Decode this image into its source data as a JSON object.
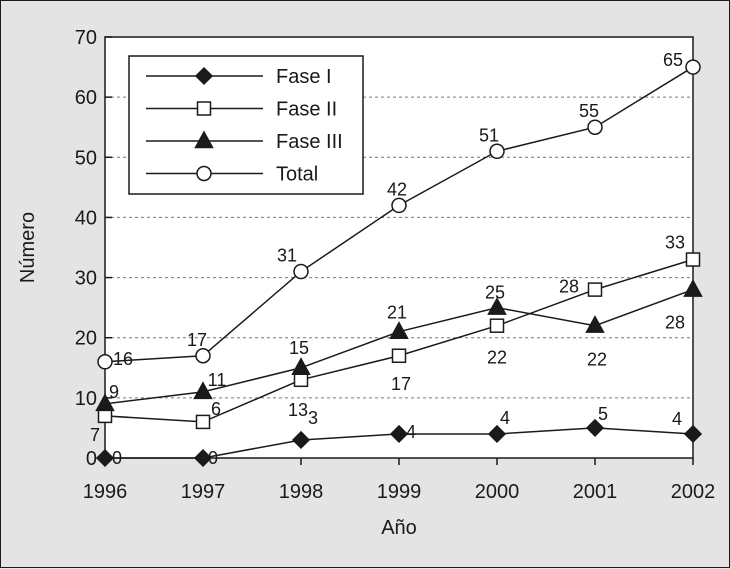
{
  "chart_data": {
    "type": "line",
    "title": "",
    "xlabel": "Año",
    "ylabel": "Número",
    "x": [
      1996,
      1997,
      1998,
      1999,
      2000,
      2001,
      2002
    ],
    "ylim": [
      0,
      70
    ],
    "yticks": [
      0,
      10,
      20,
      30,
      40,
      50,
      60,
      70
    ],
    "grid": "horizontal dashed",
    "legend_position": "top-left",
    "series": [
      {
        "name": "Fase I",
        "marker": "filled-diamond",
        "values": [
          0,
          0,
          3,
          4,
          4,
          5,
          4
        ],
        "labels": [
          "0",
          "0",
          "3",
          "4",
          "4",
          "5",
          "4"
        ]
      },
      {
        "name": "Fase II",
        "marker": "open-square",
        "values": [
          7,
          6,
          13,
          17,
          22,
          28,
          33
        ],
        "labels": [
          "7",
          "6",
          "13",
          "17",
          "22",
          "28",
          "33"
        ]
      },
      {
        "name": "Fase III",
        "marker": "filled-triangle",
        "values": [
          9,
          11,
          15,
          21,
          25,
          22,
          28
        ],
        "labels": [
          "9",
          "11",
          "15",
          "21",
          "25",
          "22",
          "28"
        ]
      },
      {
        "name": "Total",
        "marker": "open-circle",
        "values": [
          16,
          17,
          31,
          42,
          51,
          55,
          65
        ],
        "labels": [
          "16",
          "17",
          "31",
          "42",
          "51",
          "55",
          "65"
        ]
      }
    ],
    "colors": {
      "line": "#1a1a1a",
      "plot_bg": "#ffffff",
      "page_bg": "#e4e4e4",
      "grid": "#777777"
    }
  }
}
